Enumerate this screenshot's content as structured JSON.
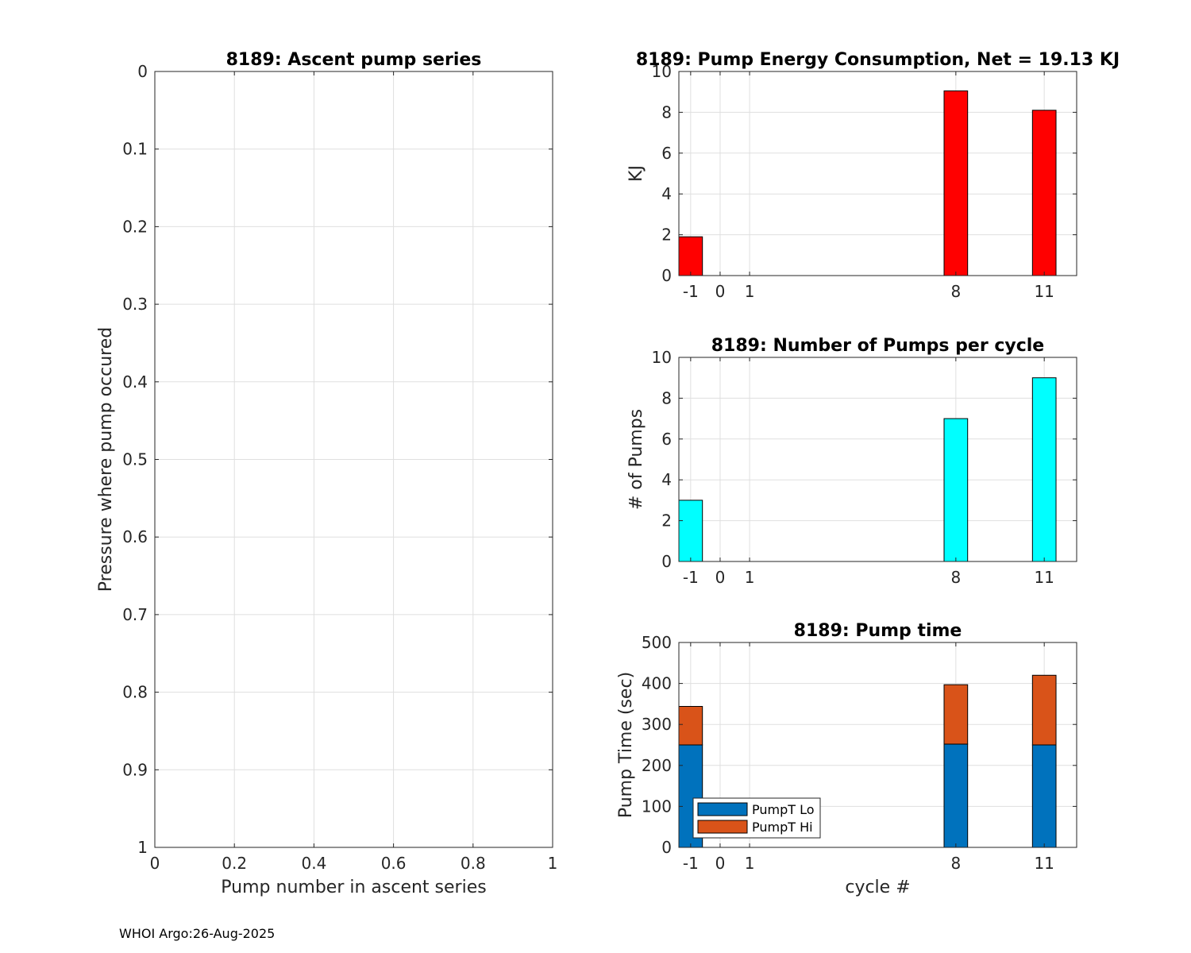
{
  "footer": "WHOI Argo:26-Aug-2025",
  "chart_data": [
    {
      "id": "ascent",
      "type": "scatter",
      "title": "8189: Ascent pump series",
      "xlabel": "Pump number in ascent series",
      "ylabel": "Pressure where pump occured",
      "xlim": [
        0,
        1
      ],
      "ylim": [
        0,
        1
      ],
      "y_reversed": true,
      "grid": true,
      "x_ticks": [
        0,
        0.2,
        0.4,
        0.6,
        0.8,
        1
      ],
      "x_tick_labels": [
        "0",
        "0.2",
        "0.4",
        "0.6",
        "0.8",
        "1"
      ],
      "y_ticks": [
        0,
        0.1,
        0.2,
        0.3,
        0.4,
        0.5,
        0.6,
        0.7,
        0.8,
        0.9,
        1
      ],
      "y_tick_labels": [
        "0",
        "0.1",
        "0.2",
        "0.3",
        "0.4",
        "0.5",
        "0.6",
        "0.7",
        "0.8",
        "0.9",
        "1"
      ],
      "series": []
    },
    {
      "id": "energy",
      "type": "bar",
      "title": "8189: Pump Energy Consumption,  Net =  19.13 KJ",
      "xlabel": "",
      "ylabel": "KJ",
      "xlim": [
        -1.4,
        12.1
      ],
      "ylim": [
        0,
        10
      ],
      "grid": true,
      "bar_width": 0.8,
      "color": "#ff0000",
      "x_ticks": [
        -1,
        0,
        1,
        8,
        11
      ],
      "x_tick_labels": [
        "-1",
        "0",
        "1",
        "8",
        "11"
      ],
      "y_ticks": [
        0,
        2,
        4,
        6,
        8,
        10
      ],
      "y_tick_labels": [
        "0",
        "2",
        "4",
        "6",
        "8",
        "10"
      ],
      "x": [
        -1,
        8,
        11
      ],
      "values": [
        1.9,
        9.05,
        8.1
      ]
    },
    {
      "id": "pumps",
      "type": "bar",
      "title": "8189: Number of Pumps per cycle",
      "xlabel": "",
      "ylabel": "# of Pumps",
      "xlim": [
        -1.4,
        12.1
      ],
      "ylim": [
        0,
        10
      ],
      "grid": true,
      "bar_width": 0.8,
      "color": "#00ffff",
      "x_ticks": [
        -1,
        0,
        1,
        8,
        11
      ],
      "x_tick_labels": [
        "-1",
        "0",
        "1",
        "8",
        "11"
      ],
      "y_ticks": [
        0,
        2,
        4,
        6,
        8,
        10
      ],
      "y_tick_labels": [
        "0",
        "2",
        "4",
        "6",
        "8",
        "10"
      ],
      "x": [
        -1,
        8,
        11
      ],
      "values": [
        3,
        7,
        9
      ]
    },
    {
      "id": "pumptime",
      "type": "bar",
      "stacked": true,
      "title": "8189: Pump time",
      "xlabel": "cycle #",
      "ylabel": "Pump Time (sec)",
      "xlim": [
        -1.4,
        12.1
      ],
      "ylim": [
        0,
        500
      ],
      "grid": true,
      "bar_width": 0.8,
      "legend_position": "bottom-left",
      "x_ticks": [
        -1,
        0,
        1,
        8,
        11
      ],
      "x_tick_labels": [
        "-1",
        "0",
        "1",
        "8",
        "11"
      ],
      "y_ticks": [
        0,
        100,
        200,
        300,
        400,
        500
      ],
      "y_tick_labels": [
        "0",
        "100",
        "200",
        "300",
        "400",
        "500"
      ],
      "x": [
        -1,
        8,
        11
      ],
      "series": [
        {
          "name": "PumpT Lo",
          "color": "#0072bd",
          "values": [
            250,
            252,
            250
          ]
        },
        {
          "name": "PumpT Hi",
          "color": "#d95319",
          "values": [
            94,
            145,
            170
          ]
        }
      ]
    }
  ]
}
